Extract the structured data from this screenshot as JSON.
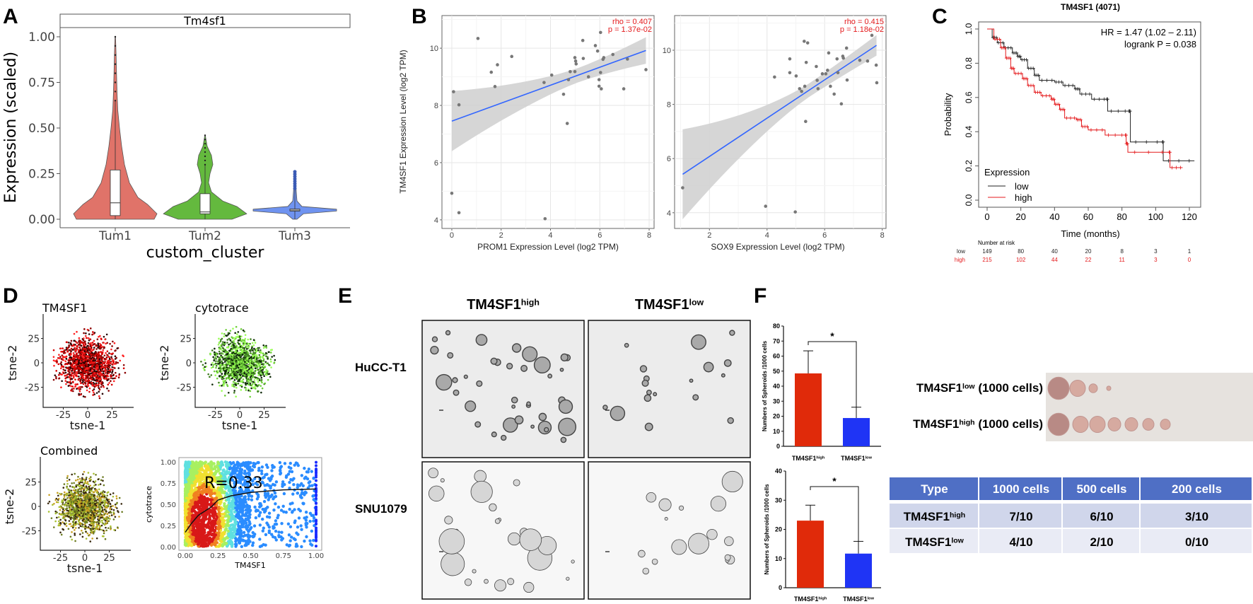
{
  "panels": {
    "A": "A",
    "B": "B",
    "C": "C",
    "D": "D",
    "E": "E",
    "F": "F"
  },
  "chart_data": [
    {
      "id": "A",
      "type": "violin",
      "strip_title": "Tm4sf1",
      "xlabel": "custom_cluster",
      "ylabel": "Expression (scaled)",
      "categories": [
        "Tum1",
        "Tum2",
        "Tum3"
      ],
      "colors": [
        "#e07369",
        "#64b93e",
        "#6f93f0"
      ],
      "ylim": [
        0,
        1.05
      ],
      "yticks": [
        "0.00",
        "0.25",
        "0.50",
        "0.75",
        "1.00"
      ],
      "box": [
        {
          "q1": 0.02,
          "median": 0.09,
          "q3": 0.27,
          "max": 1.0
        },
        {
          "q1": 0.03,
          "median": 0.04,
          "q3": 0.14,
          "max": 0.46
        },
        {
          "q1": 0.045,
          "median": 0.05,
          "q3": 0.056,
          "max": 0.26
        }
      ]
    },
    {
      "id": "B1",
      "type": "scatter",
      "xlabel": "PROM1 Expression Level (log2 TPM)",
      "ylabel": "TM4SF1 Expression Level (log2 TPM)",
      "annotation": [
        "rho = 0.407",
        "p = 1.37e-02"
      ],
      "xticks": [
        0,
        2,
        4,
        6,
        8
      ],
      "yticks": [
        4,
        6,
        8,
        10
      ],
      "xlim": [
        -0.4,
        8.2
      ],
      "ylim": [
        3.7,
        11.14
      ],
      "fit": {
        "x": [
          0,
          7.87
        ],
        "y": [
          7.45,
          9.92
        ],
        "ci_low": [
          6.4,
          9.05
        ],
        "ci_high": [
          8.5,
          10.7
        ]
      },
      "points": [
        [
          1.06,
          10.34
        ],
        [
          0.07,
          8.48
        ],
        [
          0.29,
          8.02
        ],
        [
          0,
          4.93
        ],
        [
          0.29,
          4.25
        ],
        [
          1.6,
          9.16
        ],
        [
          1.85,
          9.42
        ],
        [
          1.75,
          8.66
        ],
        [
          2.43,
          9.71
        ],
        [
          3.74,
          8.8
        ],
        [
          3.78,
          4.04
        ],
        [
          4.05,
          9.06
        ],
        [
          4.53,
          8.39
        ],
        [
          4.68,
          7.37
        ],
        [
          4.73,
          8.9
        ],
        [
          4.8,
          9.18
        ],
        [
          4.99,
          9.67
        ],
        [
          5.02,
          9.55
        ],
        [
          5.04,
          9.45
        ],
        [
          4.99,
          9.18
        ],
        [
          5.31,
          10.27
        ],
        [
          5.33,
          9.64
        ],
        [
          5.54,
          9.0
        ],
        [
          5.82,
          10.09
        ],
        [
          5.91,
          9.9
        ],
        [
          5.97,
          8.9
        ],
        [
          5.97,
          8.67
        ],
        [
          6.03,
          9.15
        ],
        [
          6.03,
          10.55
        ],
        [
          6.06,
          8.58
        ],
        [
          6.13,
          9.61
        ],
        [
          6.16,
          9.67
        ],
        [
          6.53,
          9.78
        ],
        [
          6.97,
          8.58
        ],
        [
          7.12,
          9.62
        ],
        [
          7.87,
          9.25
        ]
      ]
    },
    {
      "id": "B2",
      "type": "scatter",
      "xlabel": "SOX9 Expression Level (log2 TPM)",
      "annotation": [
        "rho = 0.415",
        "p = 1.18e-02"
      ],
      "xticks": [
        2,
        4,
        6,
        8
      ],
      "yticks": [
        4,
        6,
        8,
        10
      ],
      "xlim": [
        0.79,
        8.13
      ],
      "ylim": [
        3.42,
        11.28
      ],
      "fit": {
        "x": [
          1.07,
          7.8
        ],
        "y": [
          5.42,
          10.18
        ],
        "ci_low": [
          3.75,
          9.5
        ],
        "ci_high": [
          7.07,
          10.7
        ]
      },
      "points": [
        [
          1.07,
          4.92
        ],
        [
          3.95,
          4.24
        ],
        [
          4.98,
          4.03
        ],
        [
          4.26,
          9.01
        ],
        [
          4.79,
          9.68
        ],
        [
          4.79,
          9.17
        ],
        [
          5.01,
          9.05
        ],
        [
          5.13,
          8.58
        ],
        [
          5.2,
          8.48
        ],
        [
          5.29,
          10.33
        ],
        [
          5.41,
          10.27
        ],
        [
          5.31,
          8.67
        ],
        [
          5.36,
          9.55
        ],
        [
          5.34,
          7.37
        ],
        [
          5.71,
          9.4
        ],
        [
          5.74,
          8.89
        ],
        [
          5.77,
          8.58
        ],
        [
          5.92,
          9.13
        ],
        [
          6.04,
          9.13
        ],
        [
          6.1,
          9.26
        ],
        [
          6.14,
          9.9
        ],
        [
          6.2,
          8.67
        ],
        [
          6.33,
          8.38
        ],
        [
          6.43,
          9.68
        ],
        [
          6.46,
          9.17
        ],
        [
          6.58,
          8.02
        ],
        [
          6.63,
          9.78
        ],
        [
          6.65,
          9.71
        ],
        [
          6.76,
          10.08
        ],
        [
          6.78,
          8.9
        ],
        [
          7.22,
          9.63
        ],
        [
          7.49,
          9.6
        ],
        [
          7.64,
          10.55
        ],
        [
          7.79,
          9.45
        ],
        [
          7.81,
          8.8
        ]
      ]
    },
    {
      "id": "C",
      "type": "line",
      "title": "TM4SF1 (4071)",
      "xlabel": "Time (months)",
      "ylabel": "Probability",
      "xticks": [
        0,
        20,
        40,
        60,
        80,
        100,
        120
      ],
      "yticks": [
        "0.0",
        "0.2",
        "0.4",
        "0.6",
        "0.8",
        "1.0"
      ],
      "xlim": [
        -5,
        127
      ],
      "ylim": [
        -0.02,
        1.04
      ],
      "annotation": [
        "HR = 1.47 (1.02 – 2.11)",
        "logrank P = 0.038"
      ],
      "legend_title": "Expression",
      "legend_position": "bottom-left",
      "series": [
        {
          "name": "low",
          "color": "#222222",
          "points": [
            [
              0,
              1
            ],
            [
              3,
              0.95
            ],
            [
              6,
              0.92
            ],
            [
              10,
              0.89
            ],
            [
              15,
              0.86
            ],
            [
              18,
              0.84
            ],
            [
              20,
              0.82
            ],
            [
              24,
              0.77
            ],
            [
              28,
              0.73
            ],
            [
              31,
              0.7
            ],
            [
              40,
              0.69
            ],
            [
              45,
              0.67
            ],
            [
              52,
              0.65
            ],
            [
              55,
              0.62
            ],
            [
              62,
              0.59
            ],
            [
              71,
              0.59
            ],
            [
              71.5,
              0.52
            ],
            [
              84,
              0.52
            ],
            [
              85,
              0.34
            ],
            [
              104,
              0.34
            ],
            [
              104.5,
              0.23
            ],
            [
              123,
              0.23
            ]
          ]
        },
        {
          "name": "high",
          "color": "#e41a1c",
          "points": [
            [
              0,
              1
            ],
            [
              4,
              0.94
            ],
            [
              8,
              0.89
            ],
            [
              11,
              0.83
            ],
            [
              14,
              0.77
            ],
            [
              16,
              0.74
            ],
            [
              21,
              0.71
            ],
            [
              24,
              0.67
            ],
            [
              28,
              0.63
            ],
            [
              32,
              0.61
            ],
            [
              38,
              0.59
            ],
            [
              40,
              0.56
            ],
            [
              43,
              0.53
            ],
            [
              46,
              0.48
            ],
            [
              53,
              0.47
            ],
            [
              56,
              0.43
            ],
            [
              60,
              0.41
            ],
            [
              70,
              0.38
            ],
            [
              82,
              0.38
            ],
            [
              82.5,
              0.33
            ],
            [
              83.5,
              0.28
            ],
            [
              108,
              0.28
            ],
            [
              108.5,
              0.19
            ],
            [
              116,
              0.19
            ]
          ]
        }
      ],
      "risk_table": {
        "title": "Number at risk",
        "rows": [
          {
            "label": "low",
            "color": "#222222",
            "values": [
              "149",
              "80",
              "40",
              "20",
              "8",
              "3",
              "1"
            ]
          },
          {
            "label": "high",
            "color": "#e41a1c",
            "values": [
              "215",
              "102",
              "44",
              "22",
              "11",
              "3",
              "0"
            ]
          }
        ]
      }
    },
    {
      "id": "D",
      "type": "scatter",
      "subplots": [
        {
          "title": "TM4SF1",
          "xlabel": "tsne-1",
          "ylabel": "tsne-2",
          "xticks": [
            "-25",
            "0",
            "25"
          ],
          "yticks": [
            "25",
            "0",
            "-25"
          ],
          "palette": [
            "#2a0505",
            "#8b0000",
            "#d40000",
            "#ff2020"
          ]
        },
        {
          "title": "cytotrace",
          "xlabel": "tsne-1",
          "ylabel": "tsne-2",
          "xticks": [
            "-25",
            "0",
            "25"
          ],
          "yticks": [
            "25",
            "0",
            "-25"
          ],
          "palette": [
            "#0f2a08",
            "#3f7f20",
            "#6fcf3a",
            "#99ff55"
          ]
        },
        {
          "title": "Combined",
          "xlabel": "tsne-1",
          "ylabel": "tsne-2",
          "xticks": [
            "-25",
            "0",
            "25"
          ],
          "yticks": [
            "25",
            "0",
            "-25"
          ],
          "palette": [
            "#3a2a10",
            "#6b7a20",
            "#a8c030",
            "#c8a020"
          ]
        }
      ],
      "density": {
        "xlabel": "TM4SF1",
        "ylabel": "cytotrace",
        "annotation": "R=0.33",
        "xticks": [
          "0.00",
          "0.25",
          "0.50",
          "0.75",
          "1.00"
        ],
        "yticks": [
          "0.00",
          "0.25",
          "0.50",
          "0.75",
          "1.00"
        ],
        "xlim": [
          0,
          1
        ],
        "ylim": [
          0,
          1
        ],
        "trend": [
          [
            0,
            0.17
          ],
          [
            0.05,
            0.28
          ],
          [
            0.1,
            0.37
          ],
          [
            0.15,
            0.42
          ],
          [
            0.2,
            0.47
          ],
          [
            0.25,
            0.55
          ],
          [
            0.35,
            0.6
          ],
          [
            0.5,
            0.64
          ],
          [
            0.75,
            0.67
          ],
          [
            1.0,
            0.68
          ]
        ]
      }
    },
    {
      "id": "F1",
      "type": "bar",
      "categories": [
        {
          "base": "TM4SF1",
          "sup": "high"
        },
        {
          "base": "TM4SF1",
          "sup": "low"
        }
      ],
      "values": [
        48.5,
        18.8
      ],
      "error_upper": [
        63.5,
        26.0
      ],
      "colors": [
        "#e02a0a",
        "#1f34f5"
      ],
      "ylabel": "Numbers of Spheroids /1000 cells",
      "ylim": [
        0,
        80
      ],
      "yticks": [
        0,
        10,
        20,
        30,
        40,
        50,
        60,
        70,
        80
      ],
      "significance": "*"
    },
    {
      "id": "F2",
      "type": "bar",
      "categories": [
        {
          "base": "TM4SF1",
          "sup": "high"
        },
        {
          "base": "TM4SF1",
          "sup": "low"
        }
      ],
      "values": [
        23.0,
        11.7
      ],
      "error_upper": [
        28.3,
        15.9
      ],
      "colors": [
        "#e02a0a",
        "#1f34f5"
      ],
      "ylabel": "Numbers of Spheroids /1000 cells",
      "ylim": [
        0,
        40
      ],
      "yticks": [
        0,
        10,
        20,
        30,
        40
      ],
      "significance": "*"
    },
    {
      "id": "F-table",
      "type": "table",
      "header": [
        "Type",
        "1000 cells",
        "500 cells",
        "200 cells"
      ],
      "header_color": "#4f6fc5",
      "rows": [
        {
          "type": {
            "base": "TM4SF1",
            "sup": "high"
          },
          "cells": [
            "7/10",
            "6/10",
            "3/10"
          ]
        },
        {
          "type": {
            "base": "TM4SF1",
            "sup": "low"
          },
          "cells": [
            "4/10",
            "2/10",
            "0/10"
          ]
        }
      ]
    }
  ],
  "panel_E": {
    "columns": [
      {
        "base": "TM4SF1",
        "sup": "high"
      },
      {
        "base": "TM4SF1",
        "sup": "low"
      }
    ],
    "rows": [
      "HuCC-T1",
      "SNU1079"
    ]
  },
  "panel_F_photo": {
    "rows": [
      {
        "base": "TM4SF1",
        "sup": "low",
        "suffix": " (1000 cells)",
        "tumor_count": 4
      },
      {
        "base": "TM4SF1",
        "sup": "high",
        "suffix": " (1000 cells)",
        "tumor_count": 7
      }
    ]
  }
}
